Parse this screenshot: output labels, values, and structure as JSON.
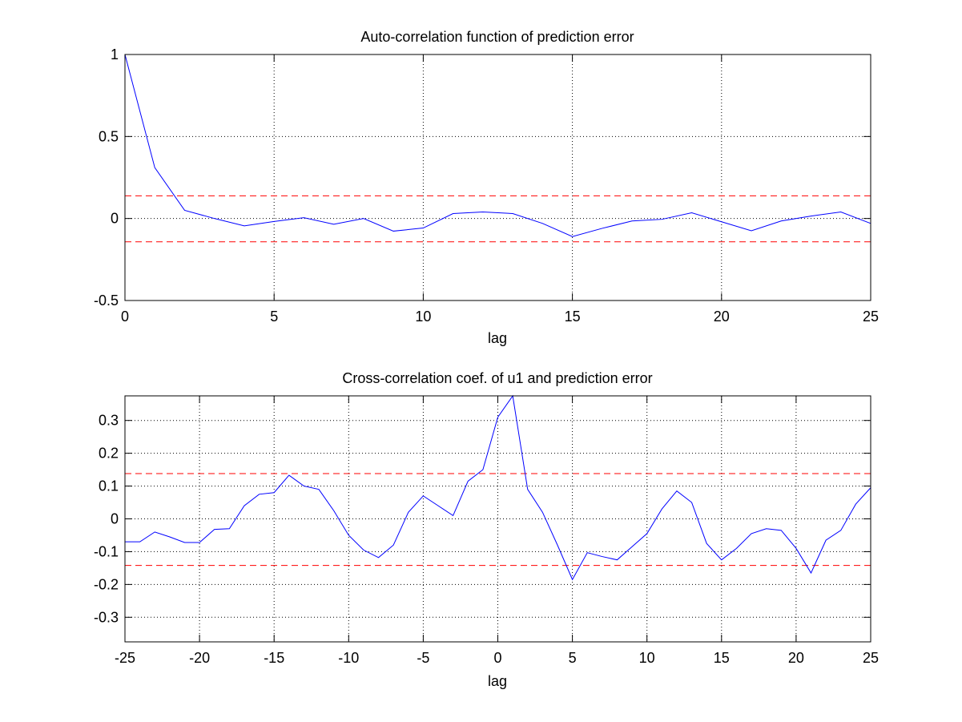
{
  "chart_data": [
    {
      "type": "line",
      "title": "Auto-correlation function of prediction error",
      "xlabel": "lag",
      "ylabel": "",
      "xlim": [
        0,
        25
      ],
      "ylim": [
        -0.5,
        1
      ],
      "xticks": [
        "0",
        "5",
        "10",
        "15",
        "20",
        "25"
      ],
      "xtick_values": [
        0,
        5,
        10,
        15,
        20,
        25
      ],
      "yticks": [
        "-0.5",
        "0",
        "0.5",
        "1"
      ],
      "ytick_values": [
        -0.5,
        0,
        0.5,
        1
      ],
      "grid": true,
      "grid_style": "dotted",
      "series": [
        {
          "color": "#0000ff",
          "x": [
            0,
            1,
            2,
            3,
            4,
            5,
            6,
            7,
            8,
            9,
            10,
            11,
            12,
            13,
            14,
            15,
            16,
            17,
            18,
            19,
            20,
            21,
            22,
            23,
            24,
            25
          ],
          "y": [
            1.0,
            0.31,
            0.05,
            0.0,
            -0.045,
            -0.018,
            0.005,
            -0.035,
            0.0,
            -0.077,
            -0.058,
            0.03,
            0.04,
            0.03,
            -0.03,
            -0.11,
            -0.06,
            -0.015,
            -0.005,
            0.035,
            -0.02,
            -0.075,
            -0.015,
            0.015,
            0.04,
            -0.03
          ]
        }
      ],
      "confidence_bounds": {
        "upper": 0.138,
        "lower": -0.142,
        "color": "#ff0000",
        "style": "dashed"
      }
    },
    {
      "type": "line",
      "title": "Cross-correlation coef. of u1 and prediction error",
      "xlabel": "lag",
      "ylabel": "",
      "xlim": [
        -25,
        25
      ],
      "ylim": [
        -0.375,
        0.375
      ],
      "xticks": [
        "-25",
        "-20",
        "-15",
        "-10",
        "-5",
        "0",
        "5",
        "10",
        "15",
        "20",
        "25"
      ],
      "xtick_values": [
        -25,
        -20,
        -15,
        -10,
        -5,
        0,
        5,
        10,
        15,
        20,
        25
      ],
      "yticks": [
        "-0.3",
        "-0.2",
        "-0.1",
        "0",
        "0.1",
        "0.2",
        "0.3"
      ],
      "ytick_values": [
        -0.3,
        -0.2,
        -0.1,
        0,
        0.1,
        0.2,
        0.3
      ],
      "grid": true,
      "grid_style": "dotted",
      "series": [
        {
          "color": "#0000ff",
          "x": [
            -25,
            -24,
            -23,
            -22,
            -21,
            -20,
            -19,
            -18,
            -17,
            -16,
            -15,
            -14,
            -13,
            -12,
            -11,
            -10,
            -9,
            -8,
            -7,
            -6,
            -5,
            -4,
            -3,
            -2,
            -1,
            0,
            1,
            2,
            3,
            4,
            5,
            6,
            7,
            8,
            9,
            10,
            11,
            12,
            13,
            14,
            15,
            16,
            17,
            18,
            19,
            20,
            21,
            22,
            23,
            24,
            25
          ],
          "y": [
            -0.07,
            -0.07,
            -0.04,
            -0.055,
            -0.072,
            -0.072,
            -0.032,
            -0.03,
            0.04,
            0.075,
            0.08,
            0.133,
            0.1,
            0.09,
            0.025,
            -0.05,
            -0.095,
            -0.118,
            -0.08,
            0.02,
            0.07,
            0.04,
            0.01,
            0.115,
            0.15,
            0.31,
            0.375,
            0.09,
            0.02,
            -0.08,
            -0.185,
            -0.103,
            -0.115,
            -0.125,
            -0.085,
            -0.045,
            0.03,
            0.085,
            0.05,
            -0.075,
            -0.125,
            -0.09,
            -0.045,
            -0.03,
            -0.035,
            -0.09,
            -0.165,
            -0.065,
            -0.035,
            0.045,
            0.095
          ]
        }
      ],
      "confidence_bounds": {
        "upper": 0.138,
        "lower": -0.142,
        "color": "#ff0000",
        "style": "dashed"
      }
    }
  ]
}
